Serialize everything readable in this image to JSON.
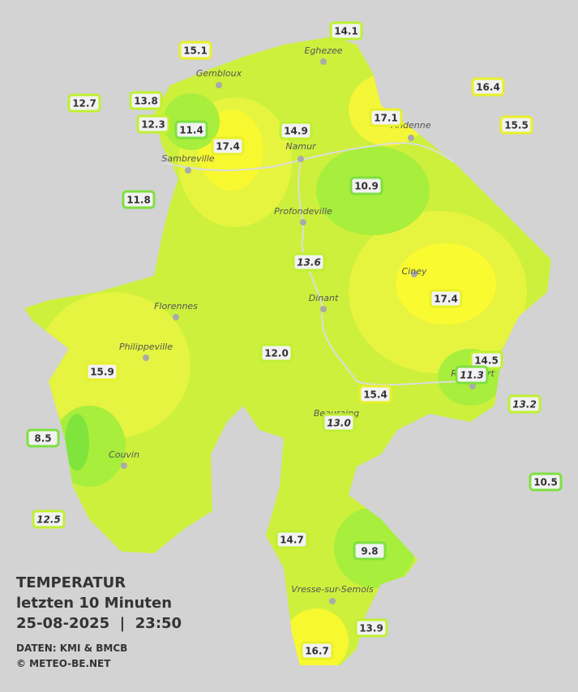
{
  "title": {
    "lines": [
      "TEMPERATUR",
      "letzten 10 Minuten",
      "25-08-2025  |  23:50"
    ],
    "credits": [
      "DATEN: KMI & BMCB",
      "© METEO-BE.NET"
    ]
  },
  "cities": [
    {
      "name": "Eghezee"
    },
    {
      "name": "Gembloux"
    },
    {
      "name": "Andenne"
    },
    {
      "name": "Namur"
    },
    {
      "name": "Sambreville"
    },
    {
      "name": "Profondeville"
    },
    {
      "name": "Ciney"
    },
    {
      "name": "Florennes"
    },
    {
      "name": "Dinant"
    },
    {
      "name": "Philippeville"
    },
    {
      "name": "Rochefort"
    },
    {
      "name": "Beauraing"
    },
    {
      "name": "Couvin"
    },
    {
      "name": "Vresse-sur-Semois"
    }
  ],
  "stations": [
    {
      "value": "14.1"
    },
    {
      "value": "15.1"
    },
    {
      "value": "16.4"
    },
    {
      "value": "12.7"
    },
    {
      "value": "13.8"
    },
    {
      "value": "17.1"
    },
    {
      "value": "15.5"
    },
    {
      "value": "12.3"
    },
    {
      "value": "11.4"
    },
    {
      "value": "14.9"
    },
    {
      "value": "17.4"
    },
    {
      "value": "10.9"
    },
    {
      "value": "11.8"
    },
    {
      "value": "13.6",
      "italic": true
    },
    {
      "value": "17.4"
    },
    {
      "value": "12.0"
    },
    {
      "value": "14.5"
    },
    {
      "value": "11.3",
      "italic": true
    },
    {
      "value": "15.9"
    },
    {
      "value": "15.4"
    },
    {
      "value": "13.2",
      "italic": true
    },
    {
      "value": "13.0",
      "italic": true
    },
    {
      "value": "8.5"
    },
    {
      "value": "10.5"
    },
    {
      "value": "12.5",
      "italic": true
    },
    {
      "value": "14.7"
    },
    {
      "value": "9.8"
    },
    {
      "value": "13.9"
    },
    {
      "value": "16.7"
    }
  ]
}
